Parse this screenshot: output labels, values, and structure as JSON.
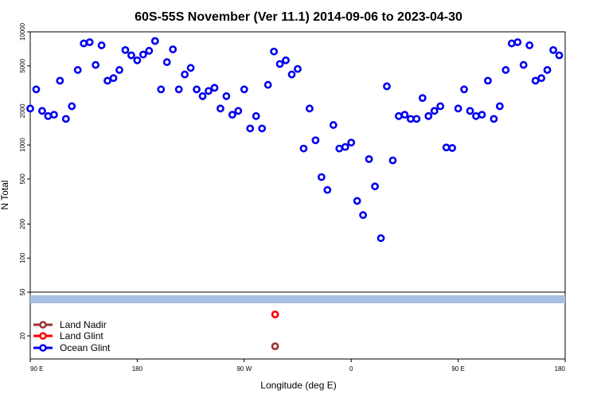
{
  "chart_data": {
    "type": "scatter",
    "title": "60S-55S November (Ver 11.1)   2014-09-06 to 2023-04-30",
    "xlabel": "Longitude (deg E)",
    "ylabel": "N Total",
    "x_ticks": [
      "90 E",
      "180",
      "90 W",
      "0",
      "90 E",
      "180"
    ],
    "upper_panel": {
      "scale": "log",
      "ylim": [
        50,
        10000
      ],
      "y_ticks": [
        "10000",
        "5000",
        "2000",
        "1000",
        "500",
        "200",
        "100",
        "50"
      ]
    },
    "lower_panel": {
      "y_ticks": [
        "20"
      ],
      "band_color": "#a7bfe0"
    },
    "legend": {
      "placement": "bottom-left",
      "entries": [
        {
          "label": "Land Nadir",
          "color": "#993333"
        },
        {
          "label": "Land Glint",
          "color": "#ff0000"
        },
        {
          "label": "Ocean Glint",
          "color": "#0000ee"
        }
      ]
    },
    "series": [
      {
        "name": "Ocean Glint",
        "color": "#0000ee",
        "points": [
          [
            90,
            2100
          ],
          [
            95,
            3100
          ],
          [
            100,
            2000
          ],
          [
            105,
            1800
          ],
          [
            110,
            1850
          ],
          [
            115,
            3700
          ],
          [
            120,
            1700
          ],
          [
            125,
            2200
          ],
          [
            130,
            4600
          ],
          [
            135,
            7900
          ],
          [
            140,
            8100
          ],
          [
            145,
            5100
          ],
          [
            150,
            7600
          ],
          [
            155,
            3700
          ],
          [
            160,
            3900
          ],
          [
            165,
            4600
          ],
          [
            170,
            6900
          ],
          [
            175,
            6200
          ],
          [
            180,
            5600
          ],
          [
            185,
            6300
          ],
          [
            190,
            6800
          ],
          [
            195,
            8300
          ],
          [
            200,
            3100
          ],
          [
            205,
            5400
          ],
          [
            210,
            7000
          ],
          [
            215,
            3100
          ],
          [
            220,
            4200
          ],
          [
            225,
            4800
          ],
          [
            230,
            3100
          ],
          [
            235,
            2700
          ],
          [
            240,
            3000
          ],
          [
            245,
            3200
          ],
          [
            250,
            2100
          ],
          [
            255,
            2700
          ],
          [
            260,
            1850
          ],
          [
            265,
            2000
          ],
          [
            270,
            3100
          ],
          [
            275,
            1400
          ],
          [
            280,
            1800
          ],
          [
            285,
            1400
          ],
          [
            290,
            3400
          ],
          [
            295,
            6700
          ],
          [
            300,
            5200
          ],
          [
            305,
            5600
          ],
          [
            310,
            4200
          ],
          [
            315,
            4700
          ],
          [
            320,
            930
          ],
          [
            325,
            2100
          ],
          [
            330,
            1100
          ],
          [
            335,
            520
          ],
          [
            340,
            400
          ],
          [
            345,
            1500
          ],
          [
            350,
            930
          ],
          [
            355,
            960
          ],
          [
            360,
            1050
          ],
          [
            365,
            320
          ],
          [
            370,
            240
          ],
          [
            375,
            750
          ],
          [
            380,
            430
          ],
          [
            385,
            150
          ],
          [
            390,
            3300
          ],
          [
            395,
            730
          ],
          [
            400,
            1800
          ],
          [
            405,
            1850
          ],
          [
            410,
            1700
          ],
          [
            415,
            1700
          ],
          [
            420,
            2600
          ],
          [
            425,
            1800
          ],
          [
            430,
            2000
          ],
          [
            435,
            2200
          ],
          [
            440,
            950
          ],
          [
            445,
            940
          ],
          [
            450,
            2100
          ],
          [
            455,
            3100
          ],
          [
            460,
            2000
          ],
          [
            465,
            1800
          ],
          [
            470,
            1850
          ],
          [
            475,
            3700
          ],
          [
            480,
            1700
          ],
          [
            485,
            2200
          ],
          [
            490,
            4600
          ],
          [
            495,
            7900
          ],
          [
            500,
            8100
          ],
          [
            505,
            5100
          ],
          [
            510,
            7600
          ],
          [
            515,
            3700
          ],
          [
            520,
            3900
          ],
          [
            525,
            4600
          ],
          [
            530,
            6900
          ],
          [
            535,
            6200
          ]
        ]
      }
    ],
    "lower_points": [
      {
        "series": "Land Glint",
        "x": 296,
        "row": "upper",
        "color": "#ff0000"
      },
      {
        "series": "Land Nadir",
        "x": 296,
        "row": "lower",
        "color": "#993333"
      }
    ]
  }
}
